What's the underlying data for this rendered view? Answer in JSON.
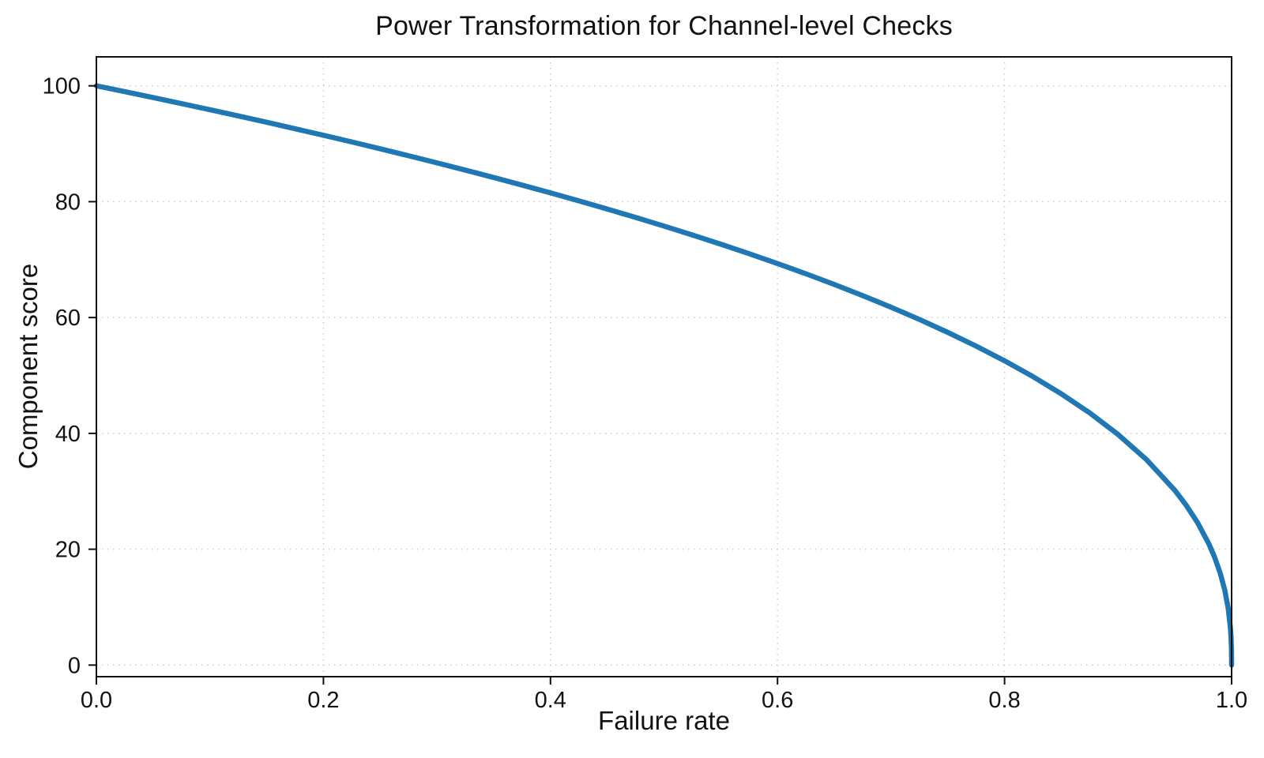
{
  "chart_data": {
    "type": "line",
    "title": "Power Transformation for Channel-level Checks",
    "xlabel": "Failure rate",
    "ylabel": "Component score",
    "xlim": [
      0.0,
      1.0
    ],
    "ylim": [
      -2,
      105
    ],
    "grid": "dotted",
    "legend": "none",
    "x_ticks": {
      "values": [
        0.0,
        0.2,
        0.4,
        0.6,
        0.8,
        1.0
      ],
      "labels": [
        "0.0",
        "0.2",
        "0.4",
        "0.6",
        "0.8",
        "1.0"
      ]
    },
    "y_ticks": {
      "values": [
        0,
        20,
        40,
        60,
        80,
        100
      ],
      "labels": [
        "0",
        "20",
        "40",
        "60",
        "80",
        "100"
      ]
    },
    "series": [
      {
        "name": "component-score-curve",
        "color": "#1f77b4",
        "line_width": 6.5,
        "x": [
          0,
          0.025,
          0.05,
          0.075,
          0.1,
          0.125,
          0.15,
          0.175,
          0.2,
          0.225,
          0.25,
          0.275,
          0.3,
          0.325,
          0.35,
          0.375,
          0.4,
          0.425,
          0.45,
          0.475,
          0.5,
          0.525,
          0.55,
          0.575,
          0.6,
          0.625,
          0.65,
          0.675,
          0.7,
          0.725,
          0.75,
          0.775,
          0.8,
          0.825,
          0.85,
          0.875,
          0.9,
          0.925,
          0.95,
          0.96,
          0.97,
          0.98,
          0.985,
          0.99,
          0.994,
          0.997,
          0.999,
          0.9995,
          0.9999,
          1.0
        ],
        "y": [
          100,
          98.99,
          97.97,
          96.93,
          95.87,
          94.8,
          93.71,
          92.59,
          91.46,
          90.31,
          89.13,
          87.93,
          86.7,
          85.45,
          84.17,
          82.86,
          81.52,
          80.14,
          78.73,
          77.28,
          75.79,
          74.25,
          72.66,
          71.02,
          69.31,
          67.55,
          65.71,
          63.79,
          61.78,
          59.67,
          57.43,
          55.06,
          52.53,
          49.8,
          46.82,
          43.53,
          39.81,
          35.48,
          30.17,
          27.59,
          24.6,
          20.91,
          18.64,
          15.85,
          12.92,
          9.79,
          6.31,
          4.78,
          2.51,
          0
        ]
      }
    ],
    "colors": {
      "line": "#1f77b4",
      "grid": "#c9c9c9",
      "spine": "#0f0f0f",
      "tick": "#0f0f0f",
      "text": "#121212",
      "background": "#ffffff"
    }
  }
}
